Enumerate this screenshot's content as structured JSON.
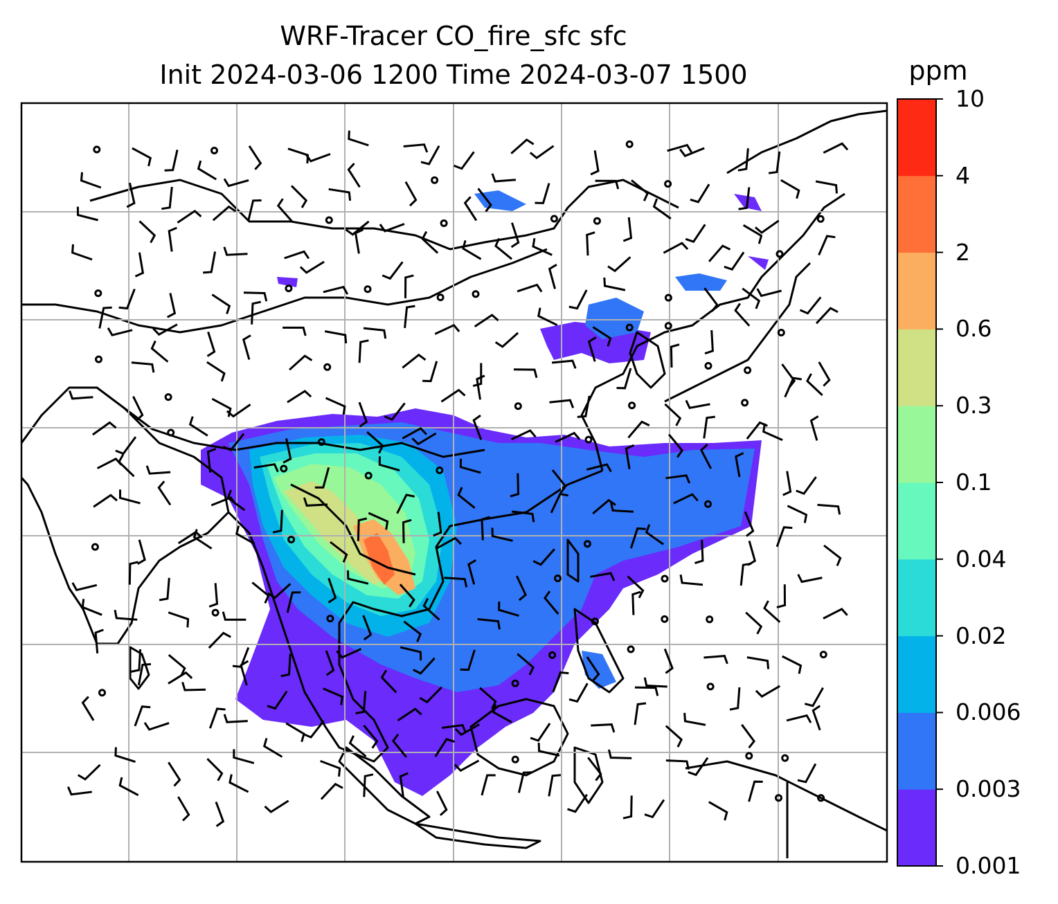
{
  "title_line1": "WRF-Tracer CO_fire_sfc sfc",
  "title_line2": "Init 2024-03-06 1200 Time 2024-03-07 1500",
  "colorbar": {
    "unit": "ppm",
    "ticks": [
      "0.001",
      "0.003",
      "0.006",
      "0.02",
      "0.04",
      "0.1",
      "0.3",
      "0.6",
      "2",
      "4",
      "10"
    ],
    "colors": [
      "#6a2bfb",
      "#3176f6",
      "#04b2ea",
      "#2adbd8",
      "#66f8bd",
      "#98f798",
      "#cfe085",
      "#fcae60",
      "#ff7039",
      "#ff2a14"
    ]
  }
}
